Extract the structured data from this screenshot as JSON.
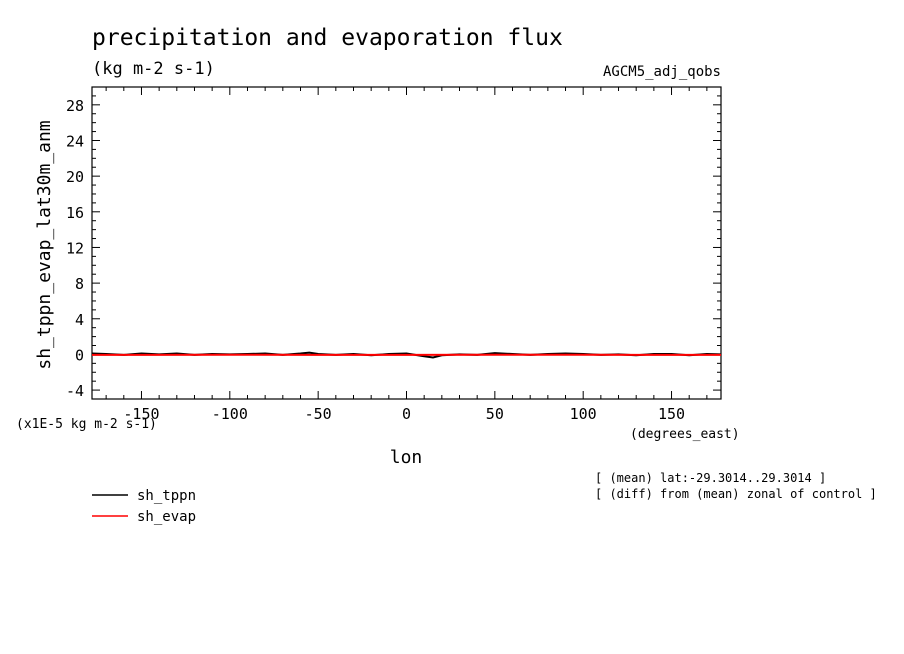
{
  "chart_data": {
    "type": "line",
    "title": "precipitation and evaporation flux",
    "units": "(kg m-2 s-1)",
    "run_label": "AGCM5_adj_qobs",
    "ylabel": "sh_tppn_evap_lat30m_anm",
    "xlabel": "lon",
    "x_units": "(degrees_east)",
    "y_scale_note": "(x1E-5 kg m-2 s-1)",
    "xlim": [
      -178,
      178
    ],
    "ylim": [
      -5,
      30
    ],
    "x_ticks": [
      -150,
      -100,
      -50,
      0,
      50,
      100,
      150
    ],
    "x_tick_labels": [
      "-150",
      "-100",
      "-50",
      "0",
      "50",
      "100",
      "150"
    ],
    "y_ticks": [
      -4,
      0,
      4,
      8,
      12,
      16,
      20,
      24,
      28
    ],
    "y_tick_labels": [
      "-4",
      "0",
      "4",
      "8",
      "12",
      "16",
      "20",
      "24",
      "28"
    ],
    "notes": [
      "[ (mean) lat:-29.3014..29.3014 ]",
      "[ (diff) from (mean) zonal of control ]"
    ],
    "series": [
      {
        "name": "sh_tppn",
        "color": "#000000",
        "x": [
          -178,
          -170,
          -160,
          -150,
          -140,
          -130,
          -120,
          -110,
          -100,
          -90,
          -80,
          -70,
          -60,
          -55,
          -50,
          -40,
          -30,
          -20,
          -10,
          0,
          10,
          15,
          20,
          30,
          40,
          50,
          60,
          70,
          80,
          90,
          100,
          110,
          120,
          130,
          140,
          150,
          160,
          170,
          178
        ],
        "y": [
          0.1,
          0.05,
          -0.05,
          0.1,
          0.0,
          0.1,
          -0.05,
          0.05,
          0.0,
          0.05,
          0.1,
          -0.05,
          0.1,
          0.2,
          0.05,
          -0.05,
          0.05,
          -0.1,
          0.05,
          0.1,
          -0.2,
          -0.35,
          -0.1,
          0.0,
          -0.05,
          0.15,
          0.05,
          -0.05,
          0.05,
          0.1,
          0.05,
          -0.05,
          0.0,
          -0.1,
          0.05,
          0.05,
          -0.1,
          0.05,
          0.0
        ]
      },
      {
        "name": "sh_evap",
        "color": "#ff0000",
        "x": [
          -178,
          -150,
          -100,
          -50,
          0,
          50,
          100,
          150,
          178
        ],
        "y": [
          -0.05,
          -0.05,
          -0.03,
          -0.05,
          -0.05,
          -0.03,
          -0.04,
          -0.05,
          -0.05
        ]
      }
    ]
  }
}
